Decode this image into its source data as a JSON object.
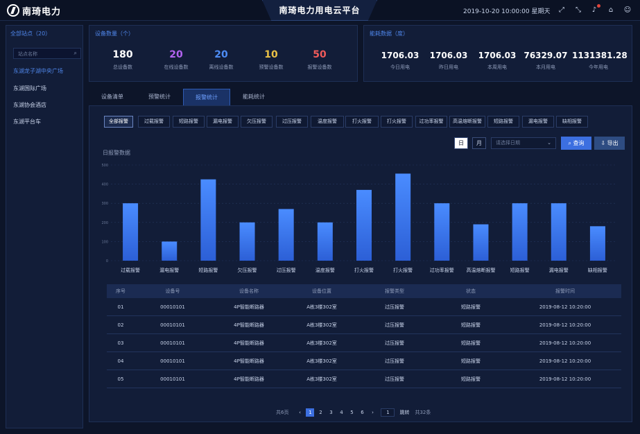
{
  "header": {
    "logo_text": "南琦电力",
    "title": "南琦电力用电云平台",
    "datetime": "2019-10-20 10:00:00 星期天",
    "icons": [
      "fullscreen-icon",
      "shrink-icon",
      "logout-icon",
      "bell-icon",
      "home-icon",
      "user-icon"
    ]
  },
  "left": {
    "title": "全部站点（20）",
    "search_placeholder": "站点名称",
    "sites": [
      "东湖龙子湖中央广场",
      "东湖国际广场",
      "东湖协会酒店",
      "东湖平台车"
    ]
  },
  "device_stats": {
    "title": "设备数量（个）",
    "items": [
      {
        "value": "180",
        "label": "总设备数",
        "color": "#ffffff"
      },
      {
        "value": "20",
        "label": "在线设备数",
        "color": "#b263f0"
      },
      {
        "value": "20",
        "label": "离线设备数",
        "color": "#4d8cf5"
      },
      {
        "value": "10",
        "label": "预警设备数",
        "color": "#e9c046"
      },
      {
        "value": "50",
        "label": "报警设备数",
        "color": "#f05a5a"
      }
    ]
  },
  "energy_stats": {
    "title": "能耗数据（度）",
    "items": [
      {
        "value": "1706.03",
        "label": "今日用电"
      },
      {
        "value": "1706.03",
        "label": "昨日用电"
      },
      {
        "value": "1706.03",
        "label": "本周用电"
      },
      {
        "value": "76329.07",
        "label": "本月用电"
      },
      {
        "value": "1131381.28",
        "label": "今年用电"
      }
    ]
  },
  "tabs": [
    "设备清单",
    "预警统计",
    "报警统计",
    "能耗统计"
  ],
  "filters": [
    "全部报警",
    "过载报警",
    "短路报警",
    "漏电报警",
    "欠压报警",
    "过压报警",
    "温度报警",
    "打火报警",
    "打火报警",
    "过功率报警",
    "高温熔断报警",
    "短路报警",
    "漏电报警",
    "缺相报警"
  ],
  "controls": {
    "day": "日",
    "month": "月",
    "date_placeholder": "请选择日期",
    "query": "查询",
    "export": "导出"
  },
  "chart_data": {
    "type": "bar",
    "ylabel": "日报警数据",
    "ylim": [
      0,
      500
    ],
    "yticks": [
      "0",
      "100",
      "200",
      "300",
      "400",
      "500"
    ],
    "categories": [
      "过载报警",
      "漏电报警",
      "短路报警",
      "欠压报警",
      "过压报警",
      "温度报警",
      "打火报警",
      "打火报警",
      "过功率报警",
      "高温熔断报警",
      "短路报警",
      "漏电报警",
      "缺相报警"
    ],
    "values": [
      300,
      100,
      425,
      200,
      270,
      200,
      370,
      455,
      300,
      190,
      300,
      300,
      180
    ],
    "bar_color": "#3a7bf2"
  },
  "table": {
    "headers": [
      "序号",
      "设备号",
      "设备名称",
      "设备位置",
      "报警类型",
      "状态",
      "报警时间"
    ],
    "rows": [
      [
        "01",
        "00010101",
        "4P智能断路器",
        "A栋3楼302室",
        "过压报警",
        "短路报警",
        "2019-08-12 10:20:00"
      ],
      [
        "02",
        "00010101",
        "4P智能断路器",
        "A栋3楼302室",
        "过压报警",
        "短路报警",
        "2019-08-12 10:20:00"
      ],
      [
        "03",
        "00010101",
        "4P智能断路器",
        "A栋3楼302室",
        "过压报警",
        "短路报警",
        "2019-08-12 10:20:00"
      ],
      [
        "04",
        "00010101",
        "4P智能断路器",
        "A栋3楼302室",
        "过压报警",
        "短路报警",
        "2019-08-12 10:20:00"
      ],
      [
        "05",
        "00010101",
        "4P智能断路器",
        "A栋3楼302室",
        "过压报警",
        "短路报警",
        "2019-08-12 10:20:00"
      ]
    ]
  },
  "pagination": {
    "prefix": "共6页",
    "pages": [
      "1",
      "2",
      "3",
      "4",
      "5",
      "6"
    ],
    "prev": "‹",
    "next": "›",
    "goto_value": "1",
    "goto_label": "跳转",
    "total": "共32条"
  }
}
